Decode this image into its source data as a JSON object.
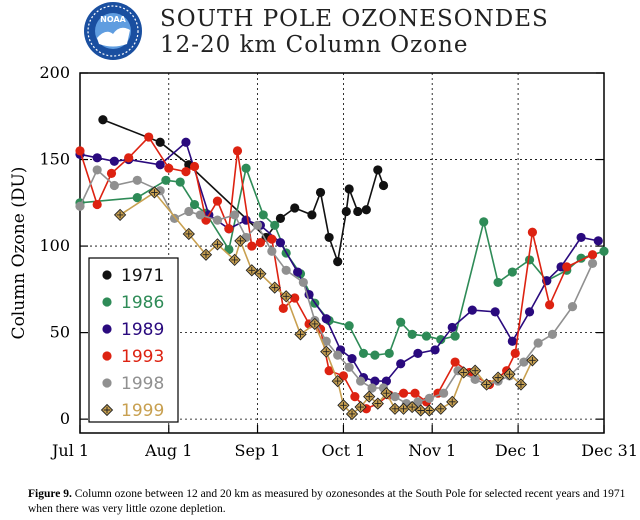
{
  "header": {
    "logo_text": "NOAA",
    "title_line1": "SOUTH POLE OZONESONDES",
    "title_line2": "12-20 km Column Ozone"
  },
  "caption": {
    "label": "Figure 9.",
    "text": "Column ozone between 12 and 20 km as measured by ozonesondes at the South Pole for selected recent years and 1971 when there was very little ozone depletion."
  },
  "chart_data": {
    "type": "line",
    "title": "SOUTH POLE OZONESONDES 12-20 km Column Ozone",
    "xlabel": "",
    "ylabel": "Column Ozone (DU)",
    "xlim": [
      0,
      183
    ],
    "ylim": [
      -8,
      200
    ],
    "x_ticks": [
      {
        "value": 0,
        "label": "Jul 1"
      },
      {
        "value": 31,
        "label": "Aug 1"
      },
      {
        "value": 62,
        "label": "Sep 1"
      },
      {
        "value": 92,
        "label": "Oct 1"
      },
      {
        "value": 123,
        "label": "Nov 1"
      },
      {
        "value": 153,
        "label": "Dec 1"
      },
      {
        "value": 183,
        "label": "Dec 31"
      }
    ],
    "y_ticks": [
      0,
      50,
      100,
      150,
      200
    ],
    "grid": true,
    "legend": "left",
    "series": [
      {
        "name": "1971",
        "color": "#111111",
        "marker": "circle",
        "x": [
          8,
          28,
          38,
          65,
          70,
          75,
          81,
          84,
          87,
          90,
          93,
          94,
          97,
          100,
          104,
          106
        ],
        "y": [
          173,
          160,
          147,
          105,
          116,
          122,
          118,
          131,
          105,
          91,
          120,
          133,
          120,
          121,
          144,
          135
        ]
      },
      {
        "name": "1986",
        "color": "#2e8b57",
        "marker": "circle",
        "x": [
          0,
          20,
          30,
          35,
          40,
          44,
          52,
          58,
          64,
          68,
          72,
          77,
          82,
          87,
          94,
          99,
          103,
          108,
          112,
          116,
          121,
          126,
          131,
          141,
          146,
          151,
          157,
          163,
          170,
          175,
          183
        ],
        "y": [
          125,
          128,
          138,
          137,
          124,
          119,
          98,
          145,
          118,
          112,
          96,
          84,
          67,
          57,
          54,
          38,
          37,
          38,
          56,
          49,
          48,
          46,
          48,
          114,
          79,
          85,
          92,
          80,
          86,
          93,
          97
        ]
      },
      {
        "name": "1989",
        "color": "#2a0a7e",
        "marker": "circle",
        "x": [
          0,
          6,
          12,
          17,
          28,
          37,
          45,
          52,
          58,
          63,
          70,
          76,
          80,
          86,
          91,
          95,
          99,
          103,
          107,
          112,
          118,
          124,
          130,
          137,
          145,
          151,
          157,
          163,
          168,
          175,
          181
        ],
        "y": [
          153,
          151,
          149,
          150,
          147,
          160,
          118,
          110,
          115,
          112,
          102,
          85,
          72,
          58,
          40,
          35,
          24,
          22,
          22,
          32,
          38,
          40,
          53,
          63,
          62,
          45,
          62,
          80,
          88,
          105,
          103
        ]
      },
      {
        "name": "1993",
        "color": "#dd2211",
        "marker": "circle",
        "x": [
          0,
          6,
          11,
          17,
          24,
          31,
          37,
          40,
          44,
          48,
          52,
          55,
          60,
          63,
          67,
          71,
          75,
          80,
          84,
          87,
          92,
          96,
          100,
          104,
          108,
          113,
          117,
          121,
          125,
          131,
          136,
          143,
          149,
          152,
          158,
          164,
          170,
          179
        ],
        "y": [
          155,
          124,
          142,
          151,
          163,
          145,
          143,
          146,
          115,
          126,
          110,
          155,
          100,
          102,
          104,
          64,
          70,
          55,
          52,
          28,
          25,
          13,
          6,
          9,
          14,
          15,
          15,
          10,
          15,
          33,
          27,
          20,
          28,
          38,
          108,
          66,
          88,
          95
        ]
      },
      {
        "name": "1998",
        "color": "#909090",
        "marker": "circle",
        "x": [
          0,
          6,
          12,
          20,
          28,
          33,
          38,
          42,
          48,
          54,
          58,
          62,
          67,
          72,
          78,
          82,
          86,
          90,
          94,
          98,
          102,
          106,
          110,
          114,
          118,
          122,
          127,
          132,
          138,
          142,
          146,
          150,
          155,
          160,
          165,
          172,
          179
        ],
        "y": [
          123,
          144,
          135,
          138,
          132,
          116,
          120,
          118,
          115,
          118,
          105,
          112,
          97,
          86,
          79,
          57,
          45,
          37,
          30,
          22,
          18,
          18,
          13,
          9,
          10,
          12,
          15,
          28,
          23,
          20,
          22,
          25,
          33,
          44,
          49,
          65,
          90
        ]
      },
      {
        "name": "1999",
        "color": "#c8a050",
        "marker": "diamond",
        "x": [
          14,
          26,
          38,
          44,
          48,
          54,
          56,
          60,
          63,
          68,
          72,
          77,
          82,
          86,
          90,
          92,
          95,
          98,
          101,
          104,
          107,
          110,
          113,
          116,
          119,
          122,
          126,
          130,
          134,
          138,
          142,
          146,
          150,
          154,
          158
        ],
        "y": [
          118,
          131,
          107,
          95,
          101,
          92,
          103,
          86,
          84,
          76,
          71,
          49,
          55,
          39,
          22,
          8,
          3,
          7,
          13,
          9,
          15,
          6,
          6,
          7,
          5,
          5,
          6,
          10,
          27,
          28,
          20,
          24,
          26,
          20,
          34
        ]
      }
    ]
  }
}
